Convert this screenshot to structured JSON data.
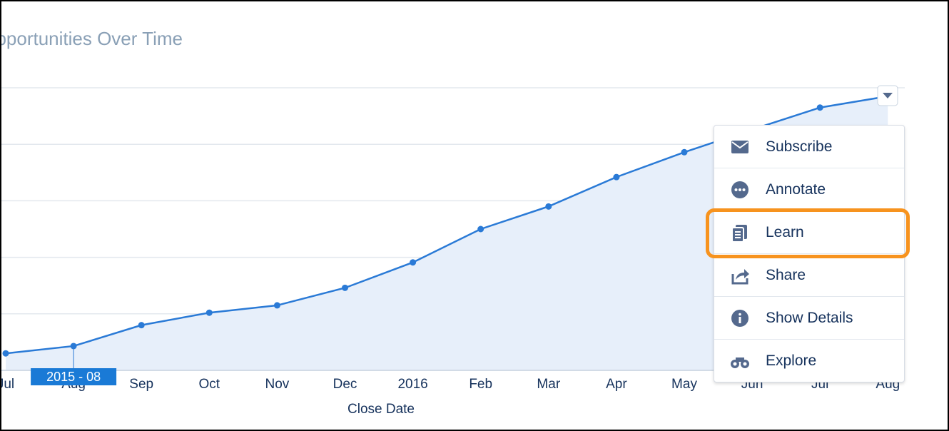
{
  "chart_data": {
    "type": "area",
    "title": "Opportunities Over Time",
    "x_label": "Close Date",
    "categories": [
      "Jul",
      "Aug",
      "Sep",
      "Oct",
      "Nov",
      "Dec",
      "2016",
      "Feb",
      "Mar",
      "Apr",
      "May",
      "Jun",
      "Jul",
      "Aug"
    ],
    "values": [
      0.3,
      0.43,
      0.8,
      1.02,
      1.15,
      1.46,
      1.91,
      2.5,
      2.9,
      3.42,
      3.86,
      4.26,
      4.65,
      4.85
    ],
    "color": "#2a7ad6",
    "ylim": [
      0,
      5
    ],
    "yticks": [
      0,
      1,
      2,
      3,
      4,
      5
    ],
    "grid": true,
    "tooltip": {
      "label": "2015 - 08",
      "index": 1
    }
  },
  "menu": {
    "items": [
      "Subscribe",
      "Annotate",
      "Learn",
      "Share",
      "Show Details",
      "Explore"
    ],
    "highlighted": 2
  }
}
